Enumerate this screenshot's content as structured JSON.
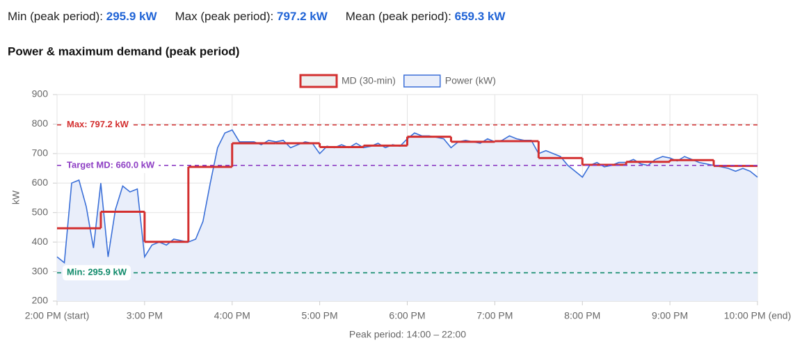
{
  "stats": [
    {
      "label": "Min (peak period):",
      "value": "295.9 kW"
    },
    {
      "label": "Max (peak period):",
      "value": "797.2 kW"
    },
    {
      "label": "Mean (peak period):",
      "value": "659.3 kW"
    }
  ],
  "chart_data": {
    "type": "line",
    "title": "Power & maximum demand (peak period)",
    "x_label": "Peak period: 14:00 – 22:00",
    "y_label": "kW",
    "xlim": [
      0,
      480
    ],
    "xticks": [
      {
        "value": 0,
        "label": "2:00 PM (start)"
      },
      {
        "value": 60,
        "label": "3:00 PM"
      },
      {
        "value": 120,
        "label": "4:00 PM"
      },
      {
        "value": 180,
        "label": "5:00 PM"
      },
      {
        "value": 240,
        "label": "6:00 PM"
      },
      {
        "value": 300,
        "label": "7:00 PM"
      },
      {
        "value": 360,
        "label": "8:00 PM"
      },
      {
        "value": 420,
        "label": "9:00 PM"
      },
      {
        "value": 480,
        "label": "10:00 PM (end)"
      }
    ],
    "ylim": [
      200,
      900
    ],
    "yticks": [
      200,
      300,
      400,
      500,
      600,
      700,
      800,
      900
    ],
    "grid": true,
    "series": [
      {
        "name": "MD (30-min)",
        "color": "#d32f2f",
        "fill": "#eeeeee",
        "step": true,
        "x": [
          0,
          30,
          60,
          90,
          120,
          150,
          180,
          210,
          240,
          270,
          300,
          330,
          360,
          390,
          420,
          450
        ],
        "values": [
          447,
          503,
          401,
          655,
          735,
          735,
          722,
          727,
          757,
          740,
          742,
          685,
          662,
          672,
          678,
          658
        ]
      },
      {
        "name": "Power (kW)",
        "color": "#3a6fd8",
        "fill": "#e9eefa",
        "x": [
          0,
          5,
          10,
          15,
          20,
          25,
          30,
          35,
          40,
          45,
          50,
          55,
          60,
          65,
          70,
          75,
          80,
          85,
          90,
          95,
          100,
          105,
          110,
          115,
          120,
          125,
          130,
          135,
          140,
          145,
          150,
          155,
          160,
          165,
          170,
          175,
          180,
          185,
          190,
          195,
          200,
          205,
          210,
          215,
          220,
          225,
          230,
          235,
          240,
          245,
          250,
          255,
          260,
          265,
          270,
          275,
          280,
          285,
          290,
          295,
          300,
          305,
          310,
          315,
          320,
          325,
          330,
          335,
          340,
          345,
          350,
          355,
          360,
          365,
          370,
          375,
          380,
          385,
          390,
          395,
          400,
          405,
          410,
          415,
          420,
          425,
          430,
          435,
          440,
          445,
          450,
          455,
          460,
          465,
          470,
          475,
          480
        ],
        "values": [
          350,
          330,
          600,
          610,
          520,
          380,
          600,
          350,
          510,
          590,
          570,
          580,
          350,
          390,
          400,
          390,
          410,
          405,
          400,
          410,
          470,
          600,
          720,
          770,
          780,
          740,
          740,
          740,
          730,
          745,
          740,
          745,
          720,
          730,
          740,
          735,
          700,
          725,
          720,
          730,
          720,
          735,
          720,
          725,
          735,
          720,
          730,
          725,
          750,
          770,
          760,
          760,
          755,
          750,
          720,
          740,
          745,
          740,
          735,
          750,
          740,
          745,
          760,
          750,
          745,
          745,
          700,
          710,
          700,
          690,
          660,
          640,
          620,
          660,
          670,
          655,
          660,
          670,
          670,
          680,
          665,
          660,
          680,
          690,
          685,
          675,
          690,
          680,
          670,
          665,
          660,
          655,
          650,
          640,
          650,
          640,
          620
        ]
      }
    ],
    "reference_lines": [
      {
        "value": 797.2,
        "label": "Max: 797.2 kW",
        "color": "#d32f2f"
      },
      {
        "value": 660.0,
        "label": "Target MD: 660.0 kW",
        "color": "#8e3fc4"
      },
      {
        "value": 295.9,
        "label": "Min: 295.9 kW",
        "color": "#0f8a6a"
      }
    ]
  }
}
